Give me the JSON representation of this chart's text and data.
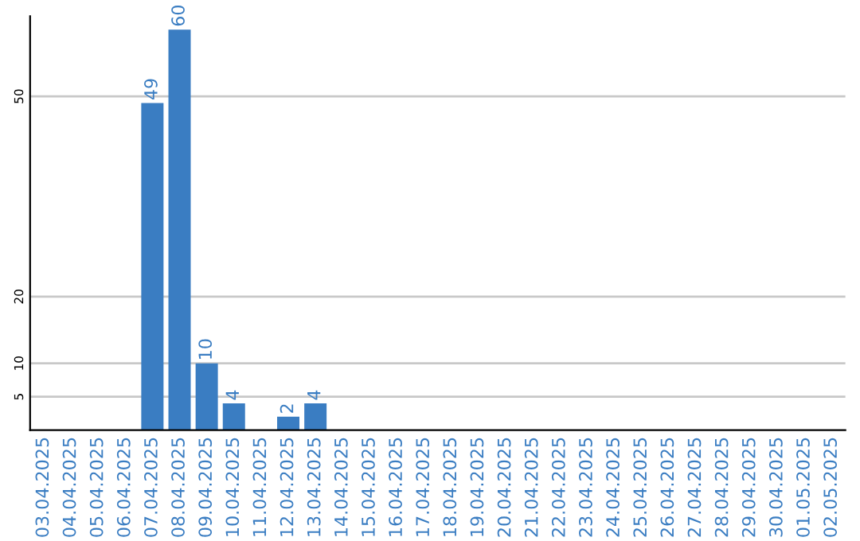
{
  "chart_data": {
    "type": "bar",
    "categories": [
      "03.04.2025",
      "04.04.2025",
      "05.04.2025",
      "06.04.2025",
      "07.04.2025",
      "08.04.2025",
      "09.04.2025",
      "10.04.2025",
      "11.04.2025",
      "12.04.2025",
      "13.04.2025",
      "14.04.2025",
      "15.04.2025",
      "16.04.2025",
      "17.04.2025",
      "18.04.2025",
      "19.04.2025",
      "20.04.2025",
      "21.04.2025",
      "22.04.2025",
      "23.04.2025",
      "24.04.2025",
      "25.04.2025",
      "26.04.2025",
      "27.04.2025",
      "28.04.2025",
      "29.04.2025",
      "30.04.2025",
      "01.05.2025",
      "02.05.2025"
    ],
    "values": [
      0,
      0,
      0,
      0,
      49,
      60,
      10,
      4,
      0,
      2,
      4,
      0,
      0,
      0,
      0,
      0,
      0,
      0,
      0,
      0,
      0,
      0,
      0,
      0,
      0,
      0,
      0,
      0,
      0,
      0
    ],
    "value_labels": [
      null,
      null,
      null,
      null,
      "49",
      "60",
      "10",
      "4",
      null,
      "2",
      "4",
      null,
      null,
      null,
      null,
      null,
      null,
      null,
      null,
      null,
      null,
      null,
      null,
      null,
      null,
      null,
      null,
      null,
      null,
      null
    ],
    "color": "#3a7dc2",
    "ylim": [
      0,
      62
    ],
    "yticks": [
      5,
      10,
      20,
      50
    ],
    "grid": "y",
    "legend": false
  }
}
